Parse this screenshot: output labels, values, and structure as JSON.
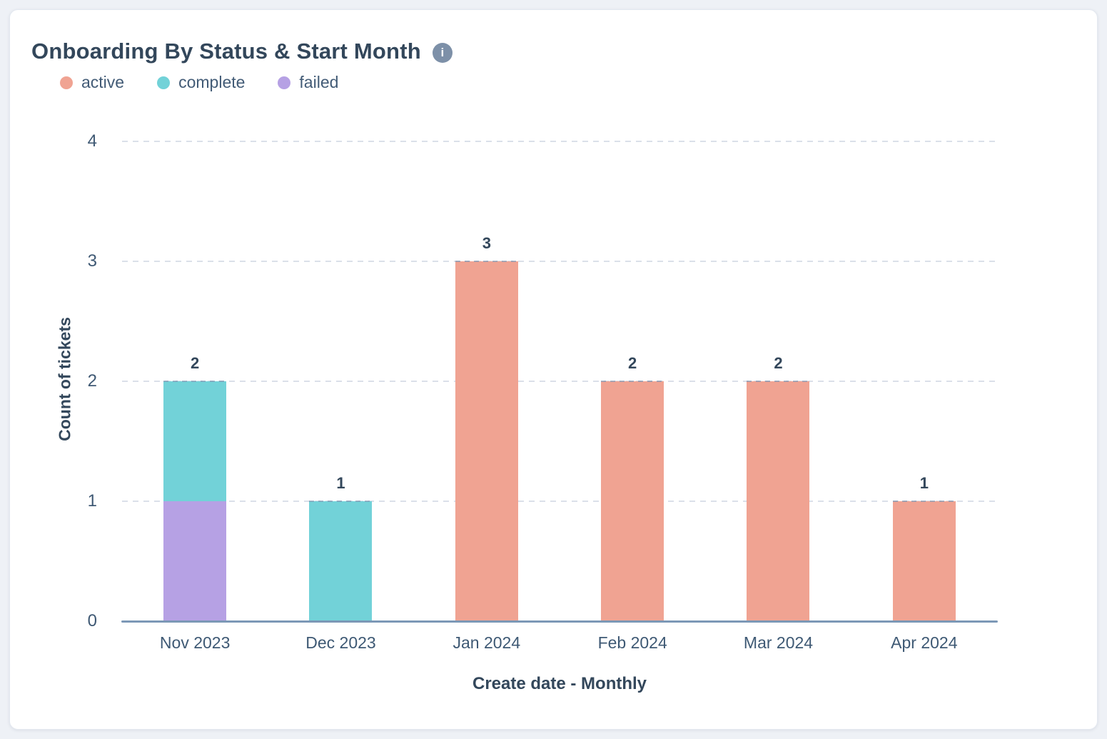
{
  "header": {
    "title": "Onboarding By Status & Start Month",
    "info_icon_glyph": "i"
  },
  "chart_data": {
    "type": "bar",
    "stacked": true,
    "title": "Onboarding By Status & Start Month",
    "categories": [
      "Nov 2023",
      "Dec 2023",
      "Jan 2024",
      "Feb 2024",
      "Mar 2024",
      "Apr 2024"
    ],
    "series": [
      {
        "name": "active",
        "color": "#f0a392",
        "values": [
          0,
          0,
          3,
          2,
          2,
          1
        ]
      },
      {
        "name": "complete",
        "color": "#72d2d8",
        "values": [
          1,
          1,
          0,
          0,
          0,
          0
        ]
      },
      {
        "name": "failed",
        "color": "#b6a1e4",
        "values": [
          1,
          0,
          0,
          0,
          0,
          0
        ]
      }
    ],
    "stack_order_bottom_to_top": [
      "failed",
      "complete",
      "active"
    ],
    "totals": [
      2,
      1,
      3,
      2,
      2,
      1
    ],
    "xlabel": "Create date - Monthly",
    "ylabel": "Count of tickets",
    "ylim": [
      0,
      4
    ],
    "yticks": [
      0,
      1,
      2,
      3,
      4
    ],
    "grid": "horizontal-dashed",
    "legend_position": "top-left"
  },
  "colors": {
    "title_text": "#33475b",
    "tick_text": "#3f5974",
    "legend_text": "#425b76",
    "axis_line": "#7c98b6",
    "gridline": "#dbe0e9",
    "info_icon_bg": "#7d90a8",
    "card_bg": "#ffffff",
    "page_bg": "#eef1f6"
  }
}
